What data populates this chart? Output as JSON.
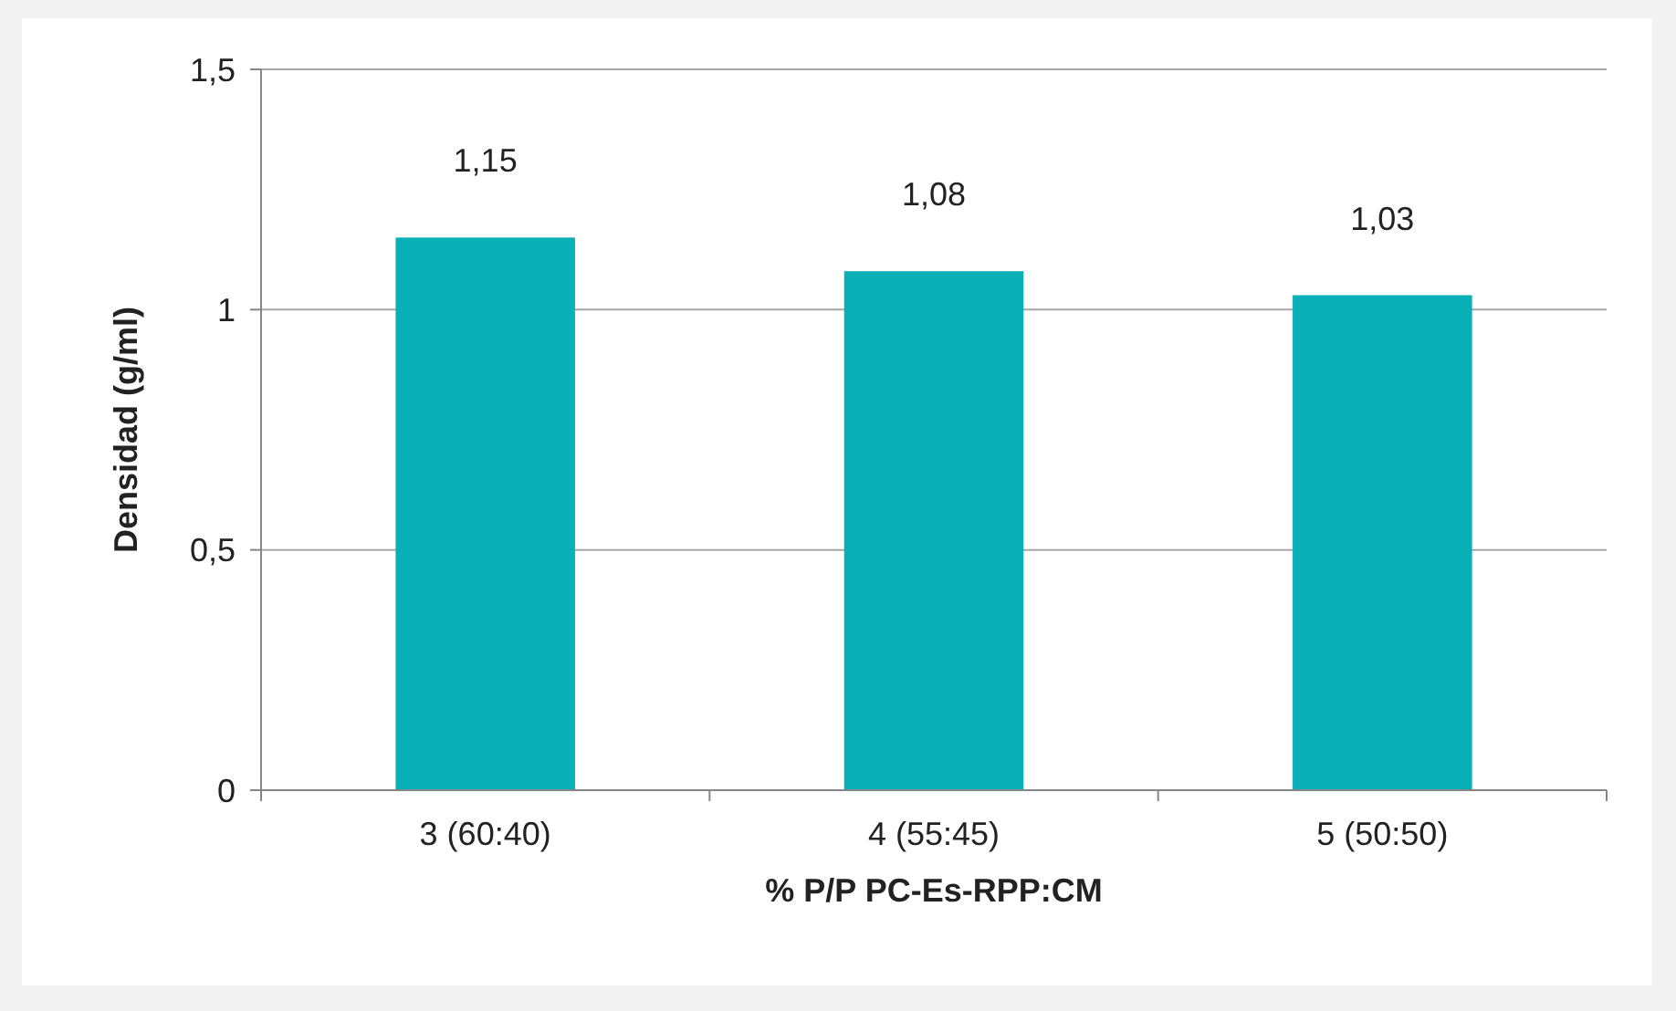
{
  "chart_data": {
    "type": "bar",
    "xlabel": "% P/P PC-Es-RPP:CM",
    "ylabel": "Densidad (g/ml)",
    "categories": [
      "3 (60:40)",
      "4 (55:45)",
      "5 (50:50)"
    ],
    "values": [
      1.15,
      1.08,
      1.03
    ],
    "value_labels": [
      "1,15",
      "1,08",
      "1,03"
    ],
    "color": "#0ab0b8",
    "ylim": [
      0,
      1.5
    ],
    "yticks": [
      {
        "value": 0,
        "label": "0"
      },
      {
        "value": 0.5,
        "label": "0,5"
      },
      {
        "value": 1,
        "label": "1"
      },
      {
        "value": 1.5,
        "label": "1,5"
      }
    ],
    "grid": "y"
  }
}
